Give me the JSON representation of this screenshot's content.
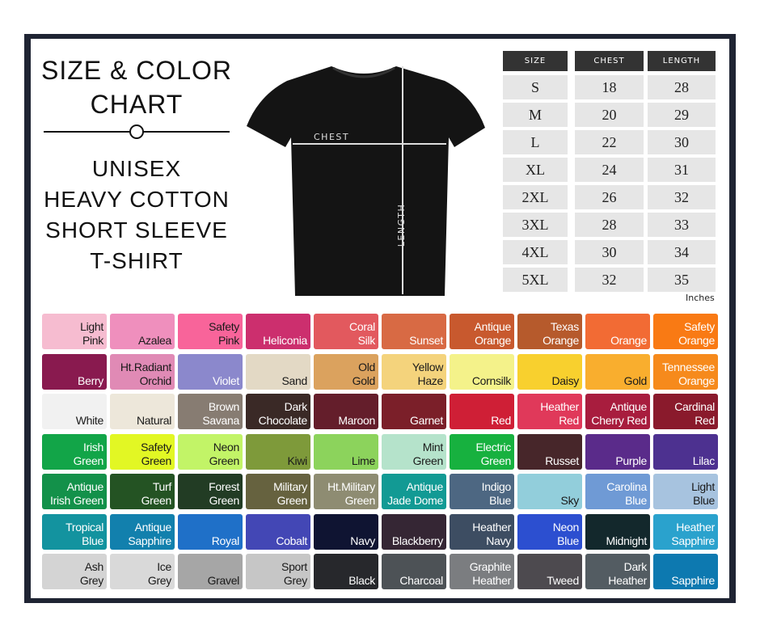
{
  "title": {
    "line1": "SIZE & COLOR",
    "line2": "CHART",
    "sub1": "UNISEX",
    "sub2": "HEAVY COTTON",
    "sub3": "SHORT SLEEVE",
    "sub4": "T-SHIRT"
  },
  "shirt": {
    "chest_label": "CHEST",
    "length_label": "LENGTH"
  },
  "size_table": {
    "headers": [
      "SIZE",
      "CHEST",
      "LENGTH"
    ],
    "rows": [
      [
        "S",
        "18",
        "28"
      ],
      [
        "M",
        "20",
        "29"
      ],
      [
        "L",
        "22",
        "30"
      ],
      [
        "XL",
        "24",
        "31"
      ],
      [
        "2XL",
        "26",
        "32"
      ],
      [
        "3XL",
        "28",
        "33"
      ],
      [
        "4XL",
        "30",
        "34"
      ],
      [
        "5XL",
        "32",
        "35"
      ]
    ],
    "unit": "Inches"
  },
  "colors": [
    [
      [
        "Light Pink",
        "#f6bcd0",
        "d"
      ],
      [
        "Azalea",
        "#ef8fbd",
        "d"
      ],
      [
        "Safety Pink",
        "#f8649a",
        "d"
      ],
      [
        "Heliconia",
        "#cc2f6e",
        "l"
      ],
      [
        "Coral Silk",
        "#e2595e",
        "l"
      ],
      [
        "Sunset",
        "#d86a44",
        "l"
      ],
      [
        "Antique Orange",
        "#c8592e",
        "l"
      ],
      [
        "Texas Orange",
        "#b65a2c",
        "l"
      ],
      [
        "Orange",
        "#f26b34",
        "l"
      ],
      [
        "Safety Orange",
        "#f97a14",
        "l"
      ]
    ],
    [
      [
        "Berry",
        "#891a4f",
        "l"
      ],
      [
        "Ht.Radiant Orchid",
        "#e08ab5",
        "d"
      ],
      [
        "Violet",
        "#8b88cc",
        "l"
      ],
      [
        "Sand",
        "#e3d9c5",
        "d"
      ],
      [
        "Old Gold",
        "#dba25e",
        "d"
      ],
      [
        "Yellow Haze",
        "#f4d37c",
        "d"
      ],
      [
        "Cornsilk",
        "#f4f28a",
        "d"
      ],
      [
        "Daisy",
        "#f8d02e",
        "d"
      ],
      [
        "Gold",
        "#f9ae2e",
        "d"
      ],
      [
        "Tennessee Orange",
        "#f68a1c",
        "l"
      ]
    ],
    [
      [
        "White",
        "#f1f1f1",
        "d"
      ],
      [
        "Natural",
        "#ede7da",
        "d"
      ],
      [
        "Brown Savana",
        "#877c72",
        "l"
      ],
      [
        "Dark Chocolate",
        "#3a2926",
        "l"
      ],
      [
        "Maroon",
        "#641e2b",
        "l"
      ],
      [
        "Garnet",
        "#7b1f29",
        "l"
      ],
      [
        "Red",
        "#cf1f36",
        "l"
      ],
      [
        "Heather Red",
        "#e0395a",
        "l"
      ],
      [
        "Antique Cherry Red",
        "#a81d3e",
        "l"
      ],
      [
        "Cardinal Red",
        "#8a1a2c",
        "l"
      ]
    ],
    [
      [
        "Irish Green",
        "#12a548",
        "l"
      ],
      [
        "Safety Green",
        "#e2f724",
        "d"
      ],
      [
        "Neon Green",
        "#c2f467",
        "d"
      ],
      [
        "Kiwi",
        "#7e9a3a",
        "d"
      ],
      [
        "Lime",
        "#8cd35c",
        "d"
      ],
      [
        "Mint Green",
        "#b5e3cb",
        "d"
      ],
      [
        "Electric Green",
        "#17b13f",
        "l"
      ],
      [
        "Russet",
        "#47262a",
        "l"
      ],
      [
        "Purple",
        "#5a2b8a",
        "l"
      ],
      [
        "Lilac",
        "#4d3190",
        "l"
      ]
    ],
    [
      [
        "Antique Irish Green",
        "#13914a",
        "l"
      ],
      [
        "Turf Green",
        "#245323",
        "l"
      ],
      [
        "Forest Green",
        "#223c24",
        "l"
      ],
      [
        "Military Green",
        "#66623f",
        "l"
      ],
      [
        "Ht.Military Green",
        "#8e8c72",
        "l"
      ],
      [
        "Antique Jade Dome",
        "#129a94",
        "l"
      ],
      [
        "Indigo Blue",
        "#4d6782",
        "l"
      ],
      [
        "Sky",
        "#92cedb",
        "d"
      ],
      [
        "Carolina Blue",
        "#6f9ad5",
        "l"
      ],
      [
        "Light Blue",
        "#a7c3df",
        "d"
      ]
    ],
    [
      [
        "Tropical Blue",
        "#13939f",
        "l"
      ],
      [
        "Antique Sapphire",
        "#1280ad",
        "l"
      ],
      [
        "Royal",
        "#1f70c8",
        "l"
      ],
      [
        "Cobalt",
        "#4347b5",
        "l"
      ],
      [
        "Navy",
        "#0f1432",
        "l"
      ],
      [
        "Blackberry",
        "#352634",
        "l"
      ],
      [
        "Heather Navy",
        "#3d4d62",
        "l"
      ],
      [
        "Neon Blue",
        "#2c4fd0",
        "l"
      ],
      [
        "Midnight",
        "#13282c",
        "l"
      ],
      [
        "Heather Sapphire",
        "#2aa2cd",
        "l"
      ]
    ],
    [
      [
        "Ash Grey",
        "#d4d4d4",
        "d"
      ],
      [
        "Ice Grey",
        "#d9d9d9",
        "d"
      ],
      [
        "Gravel",
        "#a6a6a6",
        "d"
      ],
      [
        "Sport Grey",
        "#c6c6c6",
        "d"
      ],
      [
        "Black",
        "#27282c",
        "l"
      ],
      [
        "Charcoal",
        "#4d5256",
        "l"
      ],
      [
        "Graphite Heather",
        "#7b7d80",
        "l"
      ],
      [
        "Tweed",
        "#4d4a4f",
        "l"
      ],
      [
        "Dark Heather",
        "#535c62",
        "l"
      ],
      [
        "Sapphire",
        "#0d79b0",
        "l"
      ]
    ]
  ]
}
